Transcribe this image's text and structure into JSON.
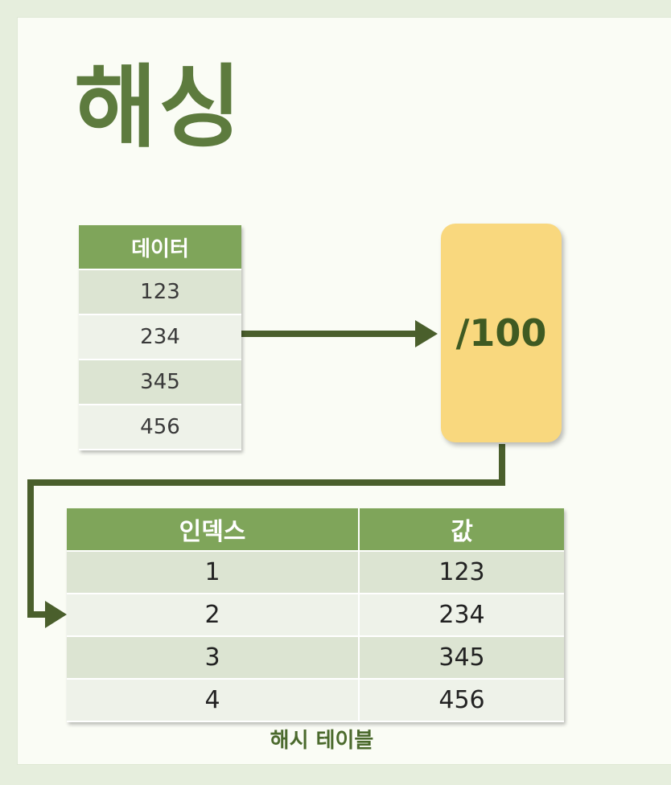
{
  "title": "해싱",
  "data_table": {
    "header": "데이터",
    "rows": [
      "123",
      "234",
      "345",
      "456"
    ]
  },
  "hash_function": "/100",
  "hash_table": {
    "headers": [
      "인덱스",
      "값"
    ],
    "rows": [
      [
        "1",
        "123"
      ],
      [
        "2",
        "234"
      ],
      [
        "3",
        "345"
      ],
      [
        "4",
        "456"
      ]
    ],
    "caption": "해시 테이블"
  },
  "colors": {
    "title": "#5d7b3e",
    "header": "#7fa55a",
    "function_box": "#f9d87e",
    "arrow": "#4a5f2c"
  }
}
